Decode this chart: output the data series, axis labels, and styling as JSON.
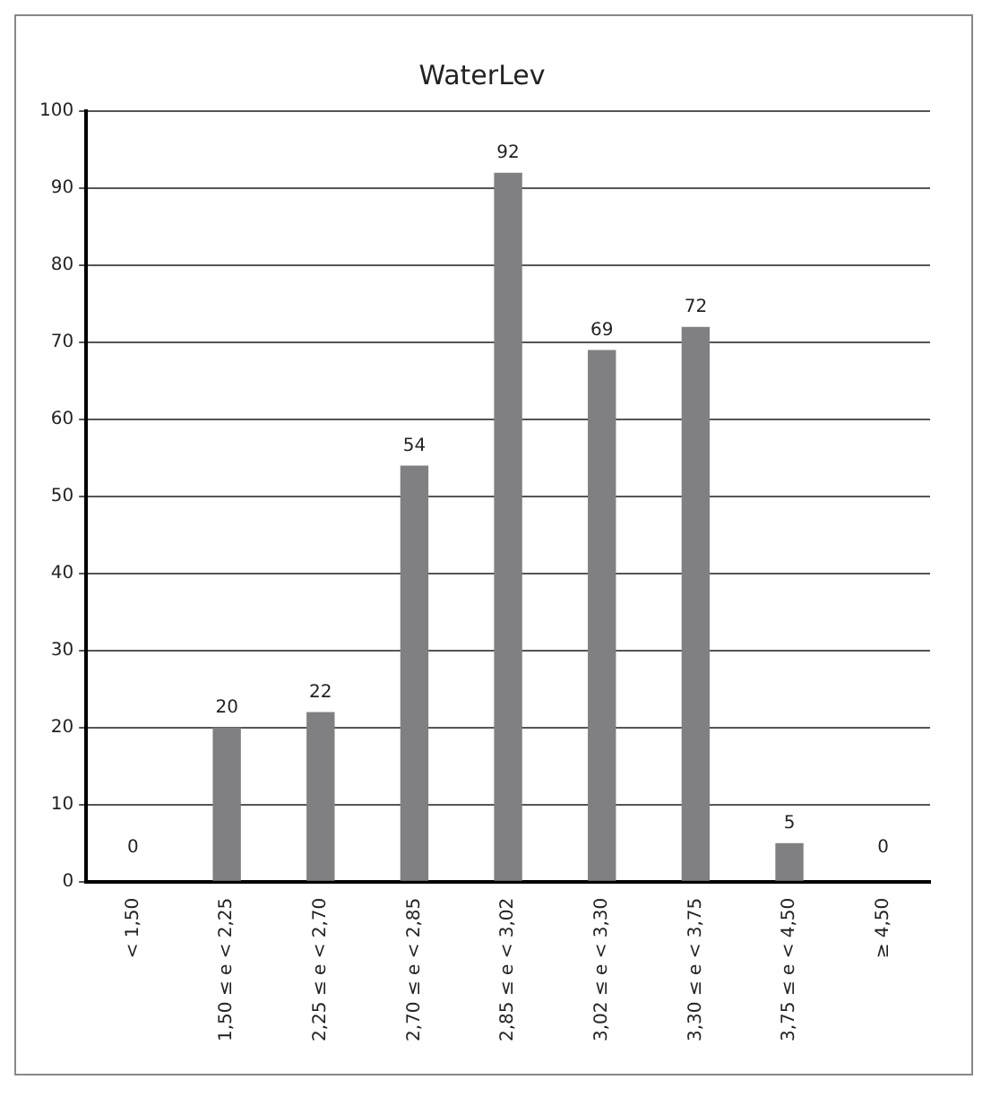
{
  "chart_data": {
    "type": "bar",
    "title": "WaterLev",
    "categories": [
      "< 1,50",
      "1,50 ≤ e < 2,25",
      "2,25 ≤ e < 2,70",
      "2,70 ≤ e < 2,85",
      "2,85 ≤ e < 3,02",
      "3,02 ≤ e < 3,30",
      "3,30 ≤ e < 3,75",
      "3,75 ≤ e < 4,50",
      "≥ 4,50"
    ],
    "values": [
      0,
      20,
      22,
      54,
      92,
      69,
      72,
      5,
      0
    ],
    "color": "#808083",
    "ylim": [
      0,
      100
    ],
    "yticks": [
      0,
      10,
      20,
      30,
      40,
      50,
      60,
      70,
      80,
      90,
      100
    ],
    "grid": "y",
    "data_labels": true,
    "legend": false
  }
}
